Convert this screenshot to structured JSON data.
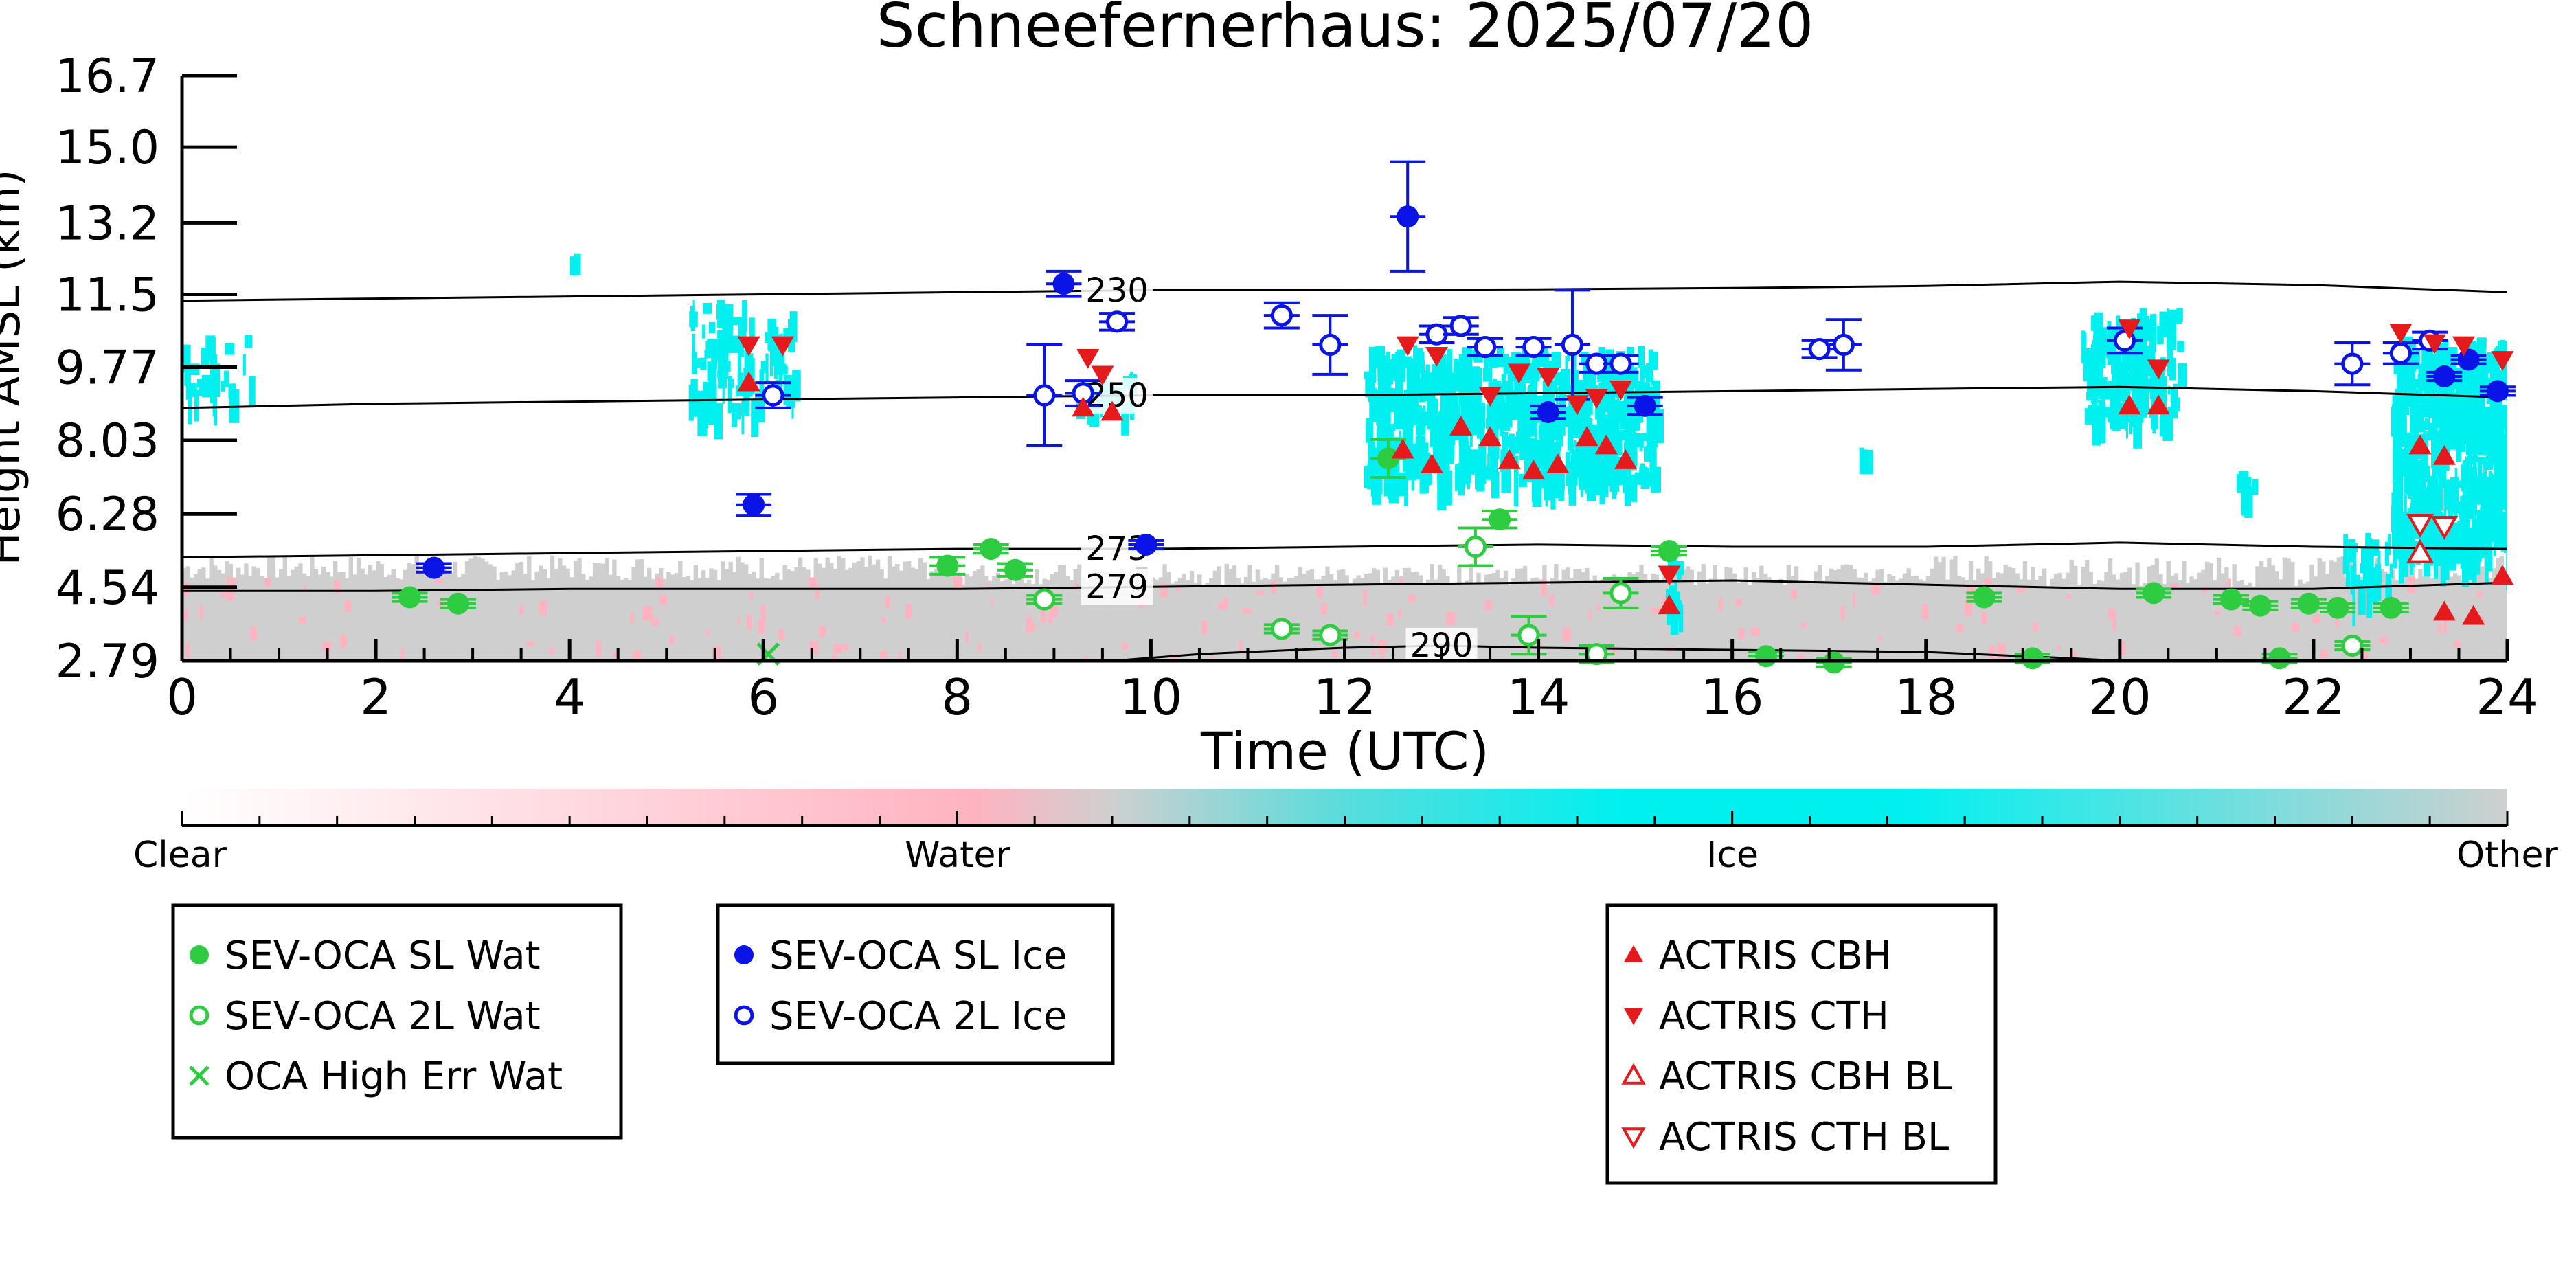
{
  "chart_data": {
    "type": "scatter",
    "title": "Schneefernerhaus: 2025/07/20",
    "xlabel": "Time (UTC)",
    "ylabel": "Height AMSL (km)",
    "xlim": [
      0,
      24
    ],
    "ylim": [
      2.79,
      16.7
    ],
    "x_ticks": [
      "0",
      "2",
      "4",
      "6",
      "8",
      "10",
      "12",
      "14",
      "16",
      "18",
      "20",
      "22",
      "24"
    ],
    "y_ticks": [
      "2.79",
      "4.54",
      "6.28",
      "8.03",
      "9.77",
      "11.5",
      "13.2",
      "15.0",
      "16.7"
    ],
    "colors": {
      "water": "#2ecc40",
      "ice": "#0a14e6",
      "actris": "#e41a1c",
      "cloud_ice": "#00f0f0",
      "cloud_water": "#ffb3c1",
      "cloud_other": "#cfcfcf"
    },
    "colorbar": {
      "labels": [
        "Clear",
        "Water",
        "Ice",
        "Other"
      ]
    },
    "contours": [
      {
        "label": "230",
        "label_x": 9.65,
        "points": [
          [
            0,
            11.35
          ],
          [
            2,
            11.4
          ],
          [
            4,
            11.45
          ],
          [
            6,
            11.5
          ],
          [
            8,
            11.55
          ],
          [
            10,
            11.6
          ],
          [
            12,
            11.6
          ],
          [
            14,
            11.62
          ],
          [
            16,
            11.65
          ],
          [
            18,
            11.7
          ],
          [
            20,
            11.8
          ],
          [
            22,
            11.72
          ],
          [
            24,
            11.55
          ]
        ]
      },
      {
        "label": "250",
        "label_x": 9.65,
        "points": [
          [
            0,
            8.8
          ],
          [
            2,
            8.9
          ],
          [
            4,
            8.95
          ],
          [
            6,
            9.0
          ],
          [
            8,
            9.05
          ],
          [
            10,
            9.1
          ],
          [
            12,
            9.1
          ],
          [
            14,
            9.15
          ],
          [
            16,
            9.2
          ],
          [
            18,
            9.25
          ],
          [
            20,
            9.3
          ],
          [
            22,
            9.2
          ],
          [
            24,
            9.05
          ]
        ]
      },
      {
        "label": "273",
        "label_x": 9.65,
        "points": [
          [
            0,
            5.25
          ],
          [
            2,
            5.3
          ],
          [
            4,
            5.35
          ],
          [
            6,
            5.4
          ],
          [
            8,
            5.45
          ],
          [
            10,
            5.45
          ],
          [
            12,
            5.5
          ],
          [
            14,
            5.55
          ],
          [
            16,
            5.5
          ],
          [
            18,
            5.5
          ],
          [
            20,
            5.6
          ],
          [
            22,
            5.5
          ],
          [
            24,
            5.45
          ]
        ]
      },
      {
        "label": "279",
        "label_x": 9.65,
        "points": [
          [
            0,
            4.45
          ],
          [
            2,
            4.45
          ],
          [
            4,
            4.5
          ],
          [
            6,
            4.5
          ],
          [
            8,
            4.5
          ],
          [
            10,
            4.55
          ],
          [
            12,
            4.6
          ],
          [
            14,
            4.65
          ],
          [
            16,
            4.7
          ],
          [
            18,
            4.6
          ],
          [
            20,
            4.5
          ],
          [
            22,
            4.5
          ],
          [
            24,
            4.65
          ]
        ]
      },
      {
        "label": "290",
        "label_x": 13.0,
        "points": [
          [
            9.6,
            2.79
          ],
          [
            10.5,
            2.95
          ],
          [
            12,
            3.1
          ],
          [
            13,
            3.15
          ],
          [
            14,
            3.1
          ],
          [
            16,
            3.05
          ],
          [
            18,
            3.0
          ],
          [
            19.5,
            2.85
          ],
          [
            20,
            2.79
          ]
        ]
      }
    ],
    "series": [
      {
        "name": "SEV-OCA SL Wat",
        "marker": "filled-circle",
        "color": "#2ecc40",
        "points": [
          [
            2.35,
            4.3,
            0.1
          ],
          [
            2.85,
            4.15,
            0.1
          ],
          [
            7.9,
            5.05,
            0.2
          ],
          [
            8.35,
            5.45,
            0.1
          ],
          [
            8.6,
            4.95,
            0.15
          ],
          [
            12.45,
            7.6,
            0.45
          ],
          [
            13.6,
            6.15,
            0.2
          ],
          [
            15.35,
            5.4,
            0.1
          ],
          [
            18.6,
            4.3,
            0.1
          ],
          [
            20.35,
            4.4,
            0.1
          ],
          [
            21.15,
            4.25,
            0.1
          ],
          [
            21.45,
            4.1,
            0.1
          ],
          [
            21.95,
            4.15,
            0.1
          ],
          [
            22.25,
            4.05,
            0.1
          ],
          [
            22.8,
            4.05,
            0.1
          ],
          [
            16.35,
            2.9,
            0.1
          ],
          [
            17.05,
            2.75,
            0.1
          ],
          [
            21.65,
            2.85,
            0.1
          ],
          [
            19.1,
            2.85,
            0.1
          ]
        ]
      },
      {
        "name": "SEV-OCA 2L Wat",
        "marker": "open-circle",
        "color": "#2ecc40",
        "points": [
          [
            8.9,
            4.25,
            0.1
          ],
          [
            11.35,
            3.55,
            0.1
          ],
          [
            11.85,
            3.4,
            0.1
          ],
          [
            13.35,
            5.5,
            0.45
          ],
          [
            13.9,
            3.4,
            0.45
          ],
          [
            14.6,
            2.95,
            0.2
          ],
          [
            14.85,
            4.4,
            0.35
          ],
          [
            22.4,
            3.15,
            0.1
          ]
        ]
      },
      {
        "name": "OCA High Err Wat",
        "marker": "cross",
        "color": "#2ecc40",
        "points": [
          [
            6.05,
            2.95
          ]
        ]
      },
      {
        "name": "SEV-OCA SL Ice",
        "marker": "filled-circle",
        "color": "#0a14e6",
        "points": [
          [
            2.6,
            5.0,
            0.1
          ],
          [
            5.9,
            6.5,
            0.25
          ],
          [
            9.1,
            11.75,
            0.3
          ],
          [
            9.95,
            5.55,
            0.1
          ],
          [
            12.65,
            13.35,
            1.3
          ],
          [
            14.1,
            8.7,
            0.15
          ],
          [
            15.1,
            8.85,
            0.2
          ],
          [
            23.35,
            9.55,
            0.1
          ],
          [
            23.6,
            9.95,
            0.1
          ],
          [
            23.9,
            9.2,
            0.1
          ]
        ]
      },
      {
        "name": "SEV-OCA 2L Ice",
        "marker": "open-circle",
        "color": "#0a14e6",
        "points": [
          [
            6.1,
            9.1,
            0.3
          ],
          [
            8.9,
            9.1,
            1.2
          ],
          [
            9.3,
            9.15,
            0.3
          ],
          [
            9.65,
            10.85,
            0.2
          ],
          [
            11.35,
            11.0,
            0.3
          ],
          [
            11.85,
            10.3,
            0.7
          ],
          [
            12.95,
            10.55,
            0.2
          ],
          [
            13.2,
            10.75,
            0.2
          ],
          [
            13.45,
            10.25,
            0.2
          ],
          [
            13.95,
            10.25,
            0.2
          ],
          [
            14.35,
            10.3,
            1.3
          ],
          [
            14.6,
            9.85,
            0.2
          ],
          [
            14.85,
            9.85,
            0.2
          ],
          [
            16.9,
            10.2,
            0.2
          ],
          [
            17.15,
            10.3,
            0.6
          ],
          [
            20.05,
            10.4,
            0.3
          ],
          [
            22.4,
            9.85,
            0.5
          ],
          [
            22.9,
            10.1,
            0.25
          ],
          [
            23.2,
            10.4,
            0.2
          ]
        ]
      },
      {
        "name": "ACTRIS CBH",
        "marker": "triangle-up",
        "color": "#e41a1c",
        "points": [
          [
            5.85,
            9.4
          ],
          [
            9.3,
            8.8
          ],
          [
            9.6,
            8.7
          ],
          [
            12.6,
            7.8
          ],
          [
            12.9,
            7.45
          ],
          [
            13.2,
            8.35
          ],
          [
            13.5,
            8.1
          ],
          [
            13.7,
            7.55
          ],
          [
            13.95,
            7.3
          ],
          [
            14.2,
            7.45
          ],
          [
            14.5,
            8.1
          ],
          [
            14.7,
            7.9
          ],
          [
            14.9,
            7.55
          ],
          [
            15.35,
            4.1
          ],
          [
            20.1,
            8.85
          ],
          [
            20.4,
            8.85
          ],
          [
            23.1,
            7.9
          ],
          [
            23.35,
            7.65
          ],
          [
            23.35,
            3.95
          ],
          [
            23.65,
            3.85
          ],
          [
            23.95,
            4.8
          ]
        ]
      },
      {
        "name": "ACTRIS CTH",
        "marker": "triangle-down",
        "color": "#e41a1c",
        "points": [
          [
            5.85,
            10.3
          ],
          [
            6.2,
            10.3
          ],
          [
            9.35,
            10.0
          ],
          [
            9.5,
            9.6
          ],
          [
            12.65,
            10.3
          ],
          [
            12.95,
            10.05
          ],
          [
            13.5,
            9.1
          ],
          [
            13.8,
            9.65
          ],
          [
            14.1,
            9.55
          ],
          [
            14.4,
            8.9
          ],
          [
            14.6,
            9.05
          ],
          [
            14.85,
            9.25
          ],
          [
            15.35,
            4.85
          ],
          [
            20.1,
            10.7
          ],
          [
            20.4,
            9.75
          ],
          [
            22.9,
            10.6
          ],
          [
            23.25,
            10.35
          ],
          [
            23.55,
            10.3
          ],
          [
            23.95,
            9.95
          ]
        ]
      },
      {
        "name": "ACTRIS CBH BL",
        "marker": "open-triangle-up",
        "color": "#e41a1c",
        "points": [
          [
            23.1,
            5.35
          ]
        ]
      },
      {
        "name": "ACTRIS CTH BL",
        "marker": "open-triangle-down",
        "color": "#e41a1c",
        "points": [
          [
            23.1,
            6.05
          ],
          [
            23.35,
            6.0
          ]
        ]
      }
    ],
    "legend": {
      "boxes": [
        [
          "SEV-OCA SL Wat",
          "SEV-OCA 2L Wat",
          "OCA High Err Wat"
        ],
        [
          "SEV-OCA SL Ice",
          "SEV-OCA 2L Ice"
        ],
        [
          "ACTRIS CBH",
          "ACTRIS CTH",
          "ACTRIS CBH BL",
          "ACTRIS CTH BL"
        ]
      ]
    }
  }
}
